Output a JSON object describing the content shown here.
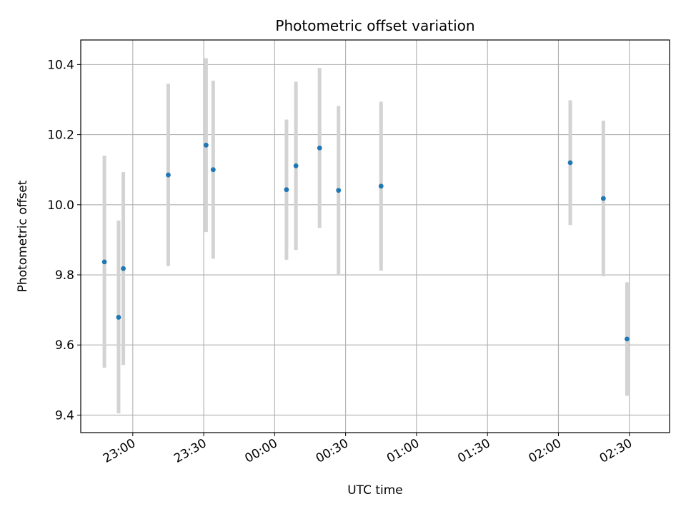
{
  "chart_data": {
    "type": "scatter",
    "title": "Photometric offset variation",
    "xlabel": "UTC time",
    "ylabel": "Photometric offset",
    "grid": true,
    "x_axis_kind": "time",
    "xlim": [
      "22:38",
      "02:47"
    ],
    "ylim": [
      9.35,
      10.47
    ],
    "x_ticks": [
      "23:00",
      "23:30",
      "00:00",
      "00:30",
      "01:00",
      "01:30",
      "02:00",
      "02:30"
    ],
    "y_ticks": [
      "9.4",
      "9.6",
      "9.8",
      "10.0",
      "10.2",
      "10.4"
    ],
    "y_tick_values": [
      9.4,
      9.6,
      9.8,
      10.0,
      10.2,
      10.4
    ],
    "colors": {
      "points": "#1f77b4",
      "error_bars": "#d3d3d3",
      "grid": "#b0b0b0"
    },
    "points": [
      {
        "x": "22:48",
        "y": 9.837,
        "ylow": 9.535,
        "yhigh": 10.14
      },
      {
        "x": "22:54",
        "y": 9.679,
        "ylow": 9.405,
        "yhigh": 9.955
      },
      {
        "x": "22:56",
        "y": 9.818,
        "ylow": 9.543,
        "yhigh": 10.093
      },
      {
        "x": "23:15",
        "y": 10.085,
        "ylow": 9.825,
        "yhigh": 10.345
      },
      {
        "x": "23:31",
        "y": 10.17,
        "ylow": 9.922,
        "yhigh": 10.418
      },
      {
        "x": "23:34",
        "y": 10.1,
        "ylow": 9.846,
        "yhigh": 10.354
      },
      {
        "x": "00:05",
        "y": 10.043,
        "ylow": 9.843,
        "yhigh": 10.243
      },
      {
        "x": "00:09",
        "y": 10.111,
        "ylow": 9.871,
        "yhigh": 10.351
      },
      {
        "x": "00:19",
        "y": 10.162,
        "ylow": 9.934,
        "yhigh": 10.39
      },
      {
        "x": "00:27",
        "y": 10.041,
        "ylow": 9.8,
        "yhigh": 10.282
      },
      {
        "x": "00:45",
        "y": 10.053,
        "ylow": 9.812,
        "yhigh": 10.294
      },
      {
        "x": "02:05",
        "y": 10.12,
        "ylow": 9.942,
        "yhigh": 10.298
      },
      {
        "x": "02:19",
        "y": 10.018,
        "ylow": 9.796,
        "yhigh": 10.24
      },
      {
        "x": "02:29",
        "y": 9.617,
        "ylow": 9.455,
        "yhigh": 9.779
      }
    ]
  }
}
